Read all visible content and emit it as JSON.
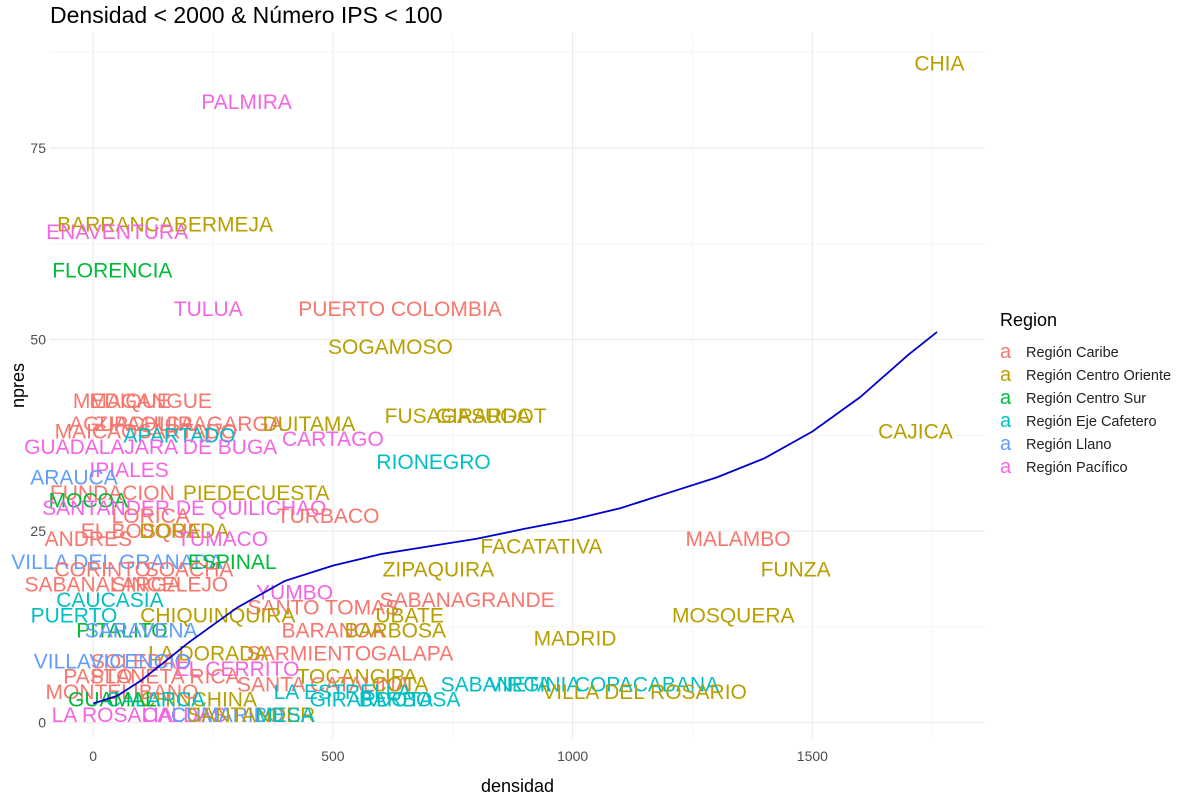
{
  "chart_data": {
    "type": "scatter",
    "title": "Densidad < 2000 & Número IPS < 100",
    "xlabel": "densidad",
    "ylabel": "npres",
    "xlim": [
      -90,
      1860
    ],
    "ylim": [
      -2,
      90
    ],
    "x_ticks": [
      0,
      500,
      1000,
      1500
    ],
    "y_ticks": [
      0,
      25,
      50,
      75
    ],
    "grid": true,
    "legend": {
      "title": "Region",
      "placement": "right",
      "key_glyph": "a",
      "entries": [
        {
          "name": "Región Caribe",
          "color": "#F8766D"
        },
        {
          "name": "Región Centro Oriente",
          "color": "#B79F00"
        },
        {
          "name": "Región Centro Sur",
          "color": "#00BA38"
        },
        {
          "name": "Región Eje Cafetero",
          "color": "#00BFC4"
        },
        {
          "name": "Región Llano",
          "color": "#619CFF"
        },
        {
          "name": "Región Pacífico",
          "color": "#F564E3"
        }
      ]
    },
    "smooth_color": "#0000CC",
    "smooth": [
      [
        0,
        2.5
      ],
      [
        50,
        3.5
      ],
      [
        100,
        5.5
      ],
      [
        150,
        8
      ],
      [
        200,
        10.5
      ],
      [
        300,
        15
      ],
      [
        400,
        18.5
      ],
      [
        500,
        20.5
      ],
      [
        600,
        22
      ],
      [
        700,
        23
      ],
      [
        800,
        24
      ],
      [
        900,
        25.3
      ],
      [
        1000,
        26.5
      ],
      [
        1100,
        28
      ],
      [
        1200,
        30
      ],
      [
        1300,
        32
      ],
      [
        1400,
        34.5
      ],
      [
        1500,
        38
      ],
      [
        1600,
        42.5
      ],
      [
        1700,
        48
      ],
      [
        1760,
        51
      ]
    ],
    "points": [
      {
        "label": "CHIA",
        "region": "Región Centro Oriente",
        "x": 1765,
        "y": 86
      },
      {
        "label": "PALMIRA",
        "region": "Región Pacífico",
        "x": 320,
        "y": 81
      },
      {
        "label": "BARRANCABERMEJA",
        "region": "Región Centro Oriente",
        "x": 150,
        "y": 65
      },
      {
        "label": "ENAVENTURA",
        "region": "Región Pacífico",
        "x": 50,
        "y": 64
      },
      {
        "label": "FLORENCIA",
        "region": "Región Centro Sur",
        "x": 40,
        "y": 59
      },
      {
        "label": "TULUA",
        "region": "Región Pacífico",
        "x": 240,
        "y": 54
      },
      {
        "label": "PUERTO COLOMBIA",
        "region": "Región Caribe",
        "x": 640,
        "y": 54
      },
      {
        "label": "SOGAMOSO",
        "region": "Región Centro Oriente",
        "x": 620,
        "y": 49
      },
      {
        "label": "MEDIQUE",
        "region": "Región Caribe",
        "x": 60,
        "y": 42
      },
      {
        "label": "MAGANGUE",
        "region": "Región Caribe",
        "x": 120,
        "y": 42
      },
      {
        "label": "AGUACHICA",
        "region": "Región Caribe",
        "x": 80,
        "y": 39
      },
      {
        "label": "ZIPAQUIRAGARGA",
        "region": "Región Caribe",
        "x": 200,
        "y": 39
      },
      {
        "label": "DUITAMA",
        "region": "Región Centro Oriente",
        "x": 450,
        "y": 39
      },
      {
        "label": "FUSAGASUGA",
        "region": "Región Centro Oriente",
        "x": 760,
        "y": 40
      },
      {
        "label": "GIRARDOT",
        "region": "Región Centro Oriente",
        "x": 830,
        "y": 40
      },
      {
        "label": "MAICAOSARTADO",
        "region": "Región Caribe",
        "x": 110,
        "y": 38
      },
      {
        "label": "APARTADO",
        "region": "Región Eje Cafetero",
        "x": 180,
        "y": 37.5
      },
      {
        "label": "CARTAGO",
        "region": "Región Pacífico",
        "x": 500,
        "y": 37
      },
      {
        "label": "CAJICA",
        "region": "Región Centro Oriente",
        "x": 1715,
        "y": 38
      },
      {
        "label": "GUADALAJARA DE BUGA",
        "region": "Región Pacífico",
        "x": 120,
        "y": 36
      },
      {
        "label": "RIONEGRO",
        "region": "Región Eje Cafetero",
        "x": 710,
        "y": 34
      },
      {
        "label": "IPIALES",
        "region": "Región Pacífico",
        "x": 75,
        "y": 33
      },
      {
        "label": "ARAUCA",
        "region": "Región Llano",
        "x": -40,
        "y": 32
      },
      {
        "label": "FUNDACION",
        "region": "Región Caribe",
        "x": 40,
        "y": 30
      },
      {
        "label": "PIEDECUESTA",
        "region": "Región Centro Oriente",
        "x": 340,
        "y": 30
      },
      {
        "label": "MOCOA",
        "region": "Región Centro Sur",
        "x": -10,
        "y": 29
      },
      {
        "label": "SANTANDER DE QUILICHAO",
        "region": "Región Pacífico",
        "x": 190,
        "y": 28
      },
      {
        "label": "LORICA",
        "region": "Región Caribe",
        "x": 120,
        "y": 27
      },
      {
        "label": "TURBACO",
        "region": "Región Caribe",
        "x": 490,
        "y": 27
      },
      {
        "label": "EL BOSQUE",
        "region": "Región Caribe",
        "x": 100,
        "y": 25
      },
      {
        "label": "DORADA",
        "region": "Región Centro Oriente",
        "x": 190,
        "y": 25
      },
      {
        "label": "ANDRES",
        "region": "Región Caribe",
        "x": -10,
        "y": 24
      },
      {
        "label": "TUMACO",
        "region": "Región Pacífico",
        "x": 270,
        "y": 24
      },
      {
        "label": "FACATATIVA",
        "region": "Región Centro Oriente",
        "x": 935,
        "y": 23
      },
      {
        "label": "MALAMBO",
        "region": "Región Caribe",
        "x": 1345,
        "y": 24
      },
      {
        "label": "VILLA DEL GRANADA",
        "region": "Región Llano",
        "x": 50,
        "y": 21
      },
      {
        "label": "ESPINAL",
        "region": "Región Centro Sur",
        "x": 290,
        "y": 21
      },
      {
        "label": "ZIPAQUIRA",
        "region": "Región Centro Oriente",
        "x": 720,
        "y": 20
      },
      {
        "label": "FUNZA",
        "region": "Región Centro Oriente",
        "x": 1465,
        "y": 20
      },
      {
        "label": "CORINTO",
        "region": "Región Caribe",
        "x": 20,
        "y": 20
      },
      {
        "label": "SOACHA",
        "region": "Región Caribe",
        "x": 200,
        "y": 20
      },
      {
        "label": "SABANALARGA",
        "region": "Región Caribe",
        "x": 20,
        "y": 18
      },
      {
        "label": "SINCELEJO",
        "region": "Región Caribe",
        "x": 160,
        "y": 18
      },
      {
        "label": "YUMBO",
        "region": "Región Pacífico",
        "x": 420,
        "y": 17
      },
      {
        "label": "CAUCASIA",
        "region": "Región Eje Cafetero",
        "x": 35,
        "y": 16
      },
      {
        "label": "SABANAGRANDE",
        "region": "Región Caribe",
        "x": 780,
        "y": 16
      },
      {
        "label": "SANTO TOMAS",
        "region": "Región Caribe",
        "x": 480,
        "y": 15
      },
      {
        "label": "MOSQUERA",
        "region": "Región Centro Oriente",
        "x": 1335,
        "y": 14
      },
      {
        "label": "CHIQUINQUIRA",
        "region": "Región Centro Oriente",
        "x": 260,
        "y": 14
      },
      {
        "label": "UBATE",
        "region": "Región Centro Oriente",
        "x": 660,
        "y": 14
      },
      {
        "label": "PUERTO",
        "region": "Región Eje Cafetero",
        "x": -40,
        "y": 14
      },
      {
        "label": "BARANOA",
        "region": "Región Caribe",
        "x": 500,
        "y": 12
      },
      {
        "label": "BARBOSA",
        "region": "Región Centro Oriente",
        "x": 630,
        "y": 12
      },
      {
        "label": "MADRID",
        "region": "Región Centro Oriente",
        "x": 1005,
        "y": 11
      },
      {
        "label": "PITALITO",
        "region": "Región Centro Sur",
        "x": 60,
        "y": 12
      },
      {
        "label": "SARAVENA",
        "region": "Región Llano",
        "x": 100,
        "y": 12
      },
      {
        "label": "SARMIENTO",
        "region": "Región Caribe",
        "x": 450,
        "y": 9
      },
      {
        "label": "GALAPA",
        "region": "Región Caribe",
        "x": 665,
        "y": 9
      },
      {
        "label": "LA DORADA",
        "region": "Región Centro Oriente",
        "x": 240,
        "y": 9
      },
      {
        "label": "SOLEDAD",
        "region": "Región Caribe",
        "x": 100,
        "y": 8
      },
      {
        "label": "VILLAVICENCIO",
        "region": "Región Llano",
        "x": 40,
        "y": 8
      },
      {
        "label": "EL CERRITO",
        "region": "Región Pacífico",
        "x": 300,
        "y": 7
      },
      {
        "label": "PLANETA RICA",
        "region": "Región Caribe",
        "x": 150,
        "y": 6
      },
      {
        "label": "TOCANCIPA",
        "region": "Región Centro Oriente",
        "x": 550,
        "y": 6
      },
      {
        "label": "SANTA CATALINA",
        "region": "Región Caribe",
        "x": 480,
        "y": 5
      },
      {
        "label": "COTA",
        "region": "Región Centro Oriente",
        "x": 640,
        "y": 5
      },
      {
        "label": "SABANETA",
        "region": "Región Eje Cafetero",
        "x": 840,
        "y": 5
      },
      {
        "label": "VIRGINIA",
        "region": "Región Eje Cafetero",
        "x": 920,
        "y": 5
      },
      {
        "label": "COPACABANA",
        "region": "Región Eje Cafetero",
        "x": 1155,
        "y": 5
      },
      {
        "label": "LA ESTRELLA",
        "region": "Región Eje Cafetero",
        "x": 520,
        "y": 4
      },
      {
        "label": "VILLA DEL ROSARIO",
        "region": "Región Centro Oriente",
        "x": 1150,
        "y": 4
      },
      {
        "label": "BARBOSA",
        "region": "Región Eje Cafetero",
        "x": 660,
        "y": 3
      },
      {
        "label": "GIRARDOTA",
        "region": "Región Eje Cafetero",
        "x": 580,
        "y": 3
      },
      {
        "label": "CHINCHINA",
        "region": "Región Centro Oriente",
        "x": 220,
        "y": 3
      },
      {
        "label": "MONTELIBANO",
        "region": "Región Caribe",
        "x": 60,
        "y": 4
      },
      {
        "label": "LA ROSALIA",
        "region": "Región Pacífico",
        "x": 40,
        "y": 1
      },
      {
        "label": "CALDAS",
        "region": "Región Pacífico",
        "x": 190,
        "y": 1
      },
      {
        "label": "CUMARIBO",
        "region": "Región Llano",
        "x": 280,
        "y": 1
      },
      {
        "label": "SANTANDER",
        "region": "Región Centro Oriente",
        "x": 330,
        "y": 1
      },
      {
        "label": "MESA",
        "region": "Región Eje Cafetero",
        "x": 400,
        "y": 1
      },
      {
        "label": "PASTO",
        "region": "Región Caribe",
        "x": 10,
        "y": 6
      },
      {
        "label": "CALARCA",
        "region": "Región Eje Cafetero",
        "x": 130,
        "y": 3
      },
      {
        "label": "GUAMAL",
        "region": "Región Centro Sur",
        "x": 40,
        "y": 3
      }
    ]
  }
}
